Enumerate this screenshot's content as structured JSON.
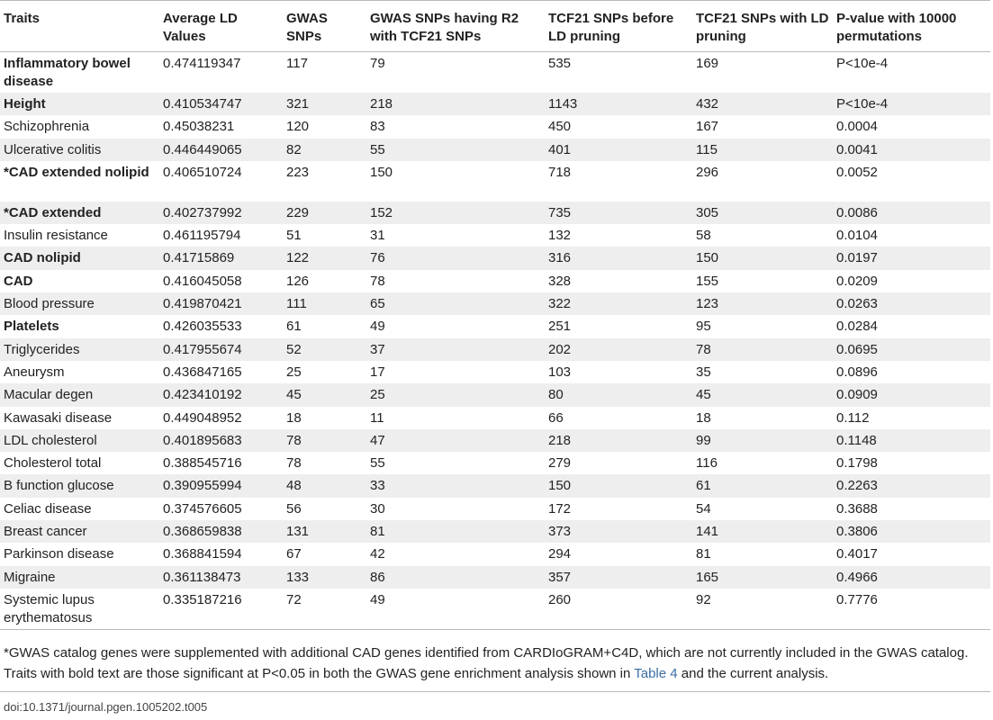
{
  "table": {
    "headers": [
      "Traits",
      "Average LD Values",
      "GWAS SNPs",
      "GWAS SNPs having R2 with TCF21 SNPs",
      "TCF21 SNPs before LD pruning",
      "TCF21 SNPs with LD pruning",
      "P-value with 10000 permutations"
    ],
    "rows": [
      {
        "trait": "Inflammatory bowel disease",
        "bold": true,
        "ld": "0.474119347",
        "gwas": "117",
        "r2": "79",
        "before": "535",
        "pruned": "169",
        "p": "P<10e-4"
      },
      {
        "trait": "Height",
        "bold": true,
        "ld": "0.410534747",
        "gwas": "321",
        "r2": "218",
        "before": "1143",
        "pruned": "432",
        "p": "P<10e-4"
      },
      {
        "trait": "Schizophrenia",
        "bold": false,
        "ld": "0.45038231",
        "gwas": "120",
        "r2": "83",
        "before": "450",
        "pruned": "167",
        "p": "0.0004"
      },
      {
        "trait": "Ulcerative colitis",
        "bold": false,
        "ld": "0.446449065",
        "gwas": "82",
        "r2": "55",
        "before": "401",
        "pruned": "115",
        "p": "0.0041"
      },
      {
        "trait": "*CAD extended nolipid",
        "bold": true,
        "ld": "0.406510724",
        "gwas": "223",
        "r2": "150",
        "before": "718",
        "pruned": "296",
        "p": "0.0052"
      },
      {
        "trait": "*CAD extended",
        "bold": true,
        "ld": "0.402737992",
        "gwas": "229",
        "r2": "152",
        "before": "735",
        "pruned": "305",
        "p": "0.0086"
      },
      {
        "trait": "Insulin resistance",
        "bold": false,
        "ld": "0.461195794",
        "gwas": "51",
        "r2": "31",
        "before": "132",
        "pruned": "58",
        "p": "0.0104"
      },
      {
        "trait": "CAD nolipid",
        "bold": true,
        "ld": "0.41715869",
        "gwas": "122",
        "r2": "76",
        "before": "316",
        "pruned": "150",
        "p": "0.0197"
      },
      {
        "trait": "CAD",
        "bold": true,
        "ld": "0.416045058",
        "gwas": "126",
        "r2": "78",
        "before": "328",
        "pruned": "155",
        "p": "0.0209"
      },
      {
        "trait": "Blood pressure",
        "bold": false,
        "ld": "0.419870421",
        "gwas": "111",
        "r2": "65",
        "before": "322",
        "pruned": "123",
        "p": "0.0263"
      },
      {
        "trait": "Platelets",
        "bold": true,
        "ld": "0.426035533",
        "gwas": "61",
        "r2": "49",
        "before": "251",
        "pruned": "95",
        "p": "0.0284"
      },
      {
        "trait": "Triglycerides",
        "bold": false,
        "ld": "0.417955674",
        "gwas": "52",
        "r2": "37",
        "before": "202",
        "pruned": "78",
        "p": "0.0695"
      },
      {
        "trait": "Aneurysm",
        "bold": false,
        "ld": "0.436847165",
        "gwas": "25",
        "r2": "17",
        "before": "103",
        "pruned": "35",
        "p": "0.0896"
      },
      {
        "trait": "Macular degen",
        "bold": false,
        "ld": "0.423410192",
        "gwas": "45",
        "r2": "25",
        "before": "80",
        "pruned": "45",
        "p": "0.0909"
      },
      {
        "trait": "Kawasaki disease",
        "bold": false,
        "ld": "0.449048952",
        "gwas": "18",
        "r2": "11",
        "before": "66",
        "pruned": "18",
        "p": "0.112"
      },
      {
        "trait": "LDL cholesterol",
        "bold": false,
        "ld": "0.401895683",
        "gwas": "78",
        "r2": "47",
        "before": "218",
        "pruned": "99",
        "p": "0.1148"
      },
      {
        "trait": "Cholesterol total",
        "bold": false,
        "ld": "0.388545716",
        "gwas": "78",
        "r2": "55",
        "before": "279",
        "pruned": "116",
        "p": "0.1798"
      },
      {
        "trait": "B function glucose",
        "bold": false,
        "ld": "0.390955994",
        "gwas": "48",
        "r2": "33",
        "before": "150",
        "pruned": "61",
        "p": "0.2263"
      },
      {
        "trait": "Celiac disease",
        "bold": false,
        "ld": "0.374576605",
        "gwas": "56",
        "r2": "30",
        "before": "172",
        "pruned": "54",
        "p": "0.3688"
      },
      {
        "trait": "Breast cancer",
        "bold": false,
        "ld": "0.368659838",
        "gwas": "131",
        "r2": "81",
        "before": "373",
        "pruned": "141",
        "p": "0.3806"
      },
      {
        "trait": "Parkinson disease",
        "bold": false,
        "ld": "0.368841594",
        "gwas": "67",
        "r2": "42",
        "before": "294",
        "pruned": "81",
        "p": "0.4017"
      },
      {
        "trait": "Migraine",
        "bold": false,
        "ld": "0.361138473",
        "gwas": "133",
        "r2": "86",
        "before": "357",
        "pruned": "165",
        "p": "0.4966"
      },
      {
        "trait": "Systemic lupus erythematosus",
        "bold": false,
        "ld": "0.335187216",
        "gwas": "72",
        "r2": "49",
        "before": "260",
        "pruned": "92",
        "p": "0.7776"
      }
    ]
  },
  "footnote": {
    "text_before": "*GWAS catalog genes were supplemented with additional CAD genes identified from CARDIoGRAM+C4D, which are not currently included in the GWAS catalog. Traits with bold text are those significant at P<0.05 in both the GWAS gene enrichment analysis shown in ",
    "link_text": "Table 4",
    "text_after": " and the current analysis."
  },
  "doi": "doi:10.1371/journal.pgen.1005202.t005",
  "colors": {
    "link": "#3a6ea5",
    "stripe": "#eeeeee",
    "rule": "#b9b9b9"
  }
}
